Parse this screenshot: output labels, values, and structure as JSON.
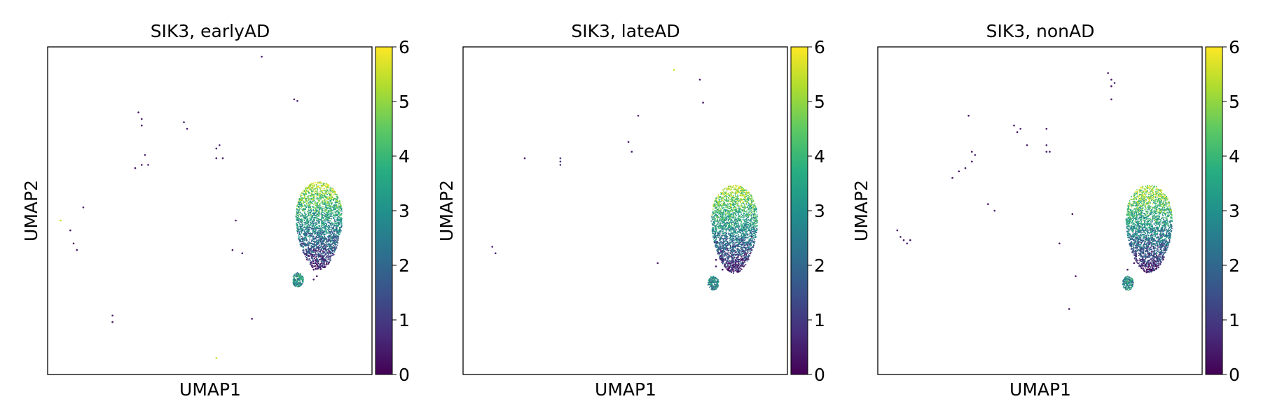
{
  "chart_data": [
    {
      "type": "scatter",
      "title": "SIK3, earlyAD",
      "xlabel": "UMAP1",
      "ylabel": "UMAP2",
      "color_scale": "viridis",
      "colorbar_ticks": [
        "0",
        "1",
        "2",
        "3",
        "4",
        "5",
        "6"
      ],
      "clim": [
        0,
        6
      ],
      "grid": false,
      "points": [
        {
          "x": 0.66,
          "y": 0.97,
          "v": 0.5
        },
        {
          "x": 0.76,
          "y": 0.84,
          "v": 0.5
        },
        {
          "x": 0.77,
          "y": 0.835,
          "v": 0.6
        },
        {
          "x": 0.28,
          "y": 0.8,
          "v": 0.4
        },
        {
          "x": 0.29,
          "y": 0.78,
          "v": 0.5
        },
        {
          "x": 0.29,
          "y": 0.76,
          "v": 0.3
        },
        {
          "x": 0.42,
          "y": 0.77,
          "v": 0.5
        },
        {
          "x": 0.43,
          "y": 0.75,
          "v": 0.4
        },
        {
          "x": 0.52,
          "y": 0.69,
          "v": 0.5
        },
        {
          "x": 0.53,
          "y": 0.7,
          "v": 0.6
        },
        {
          "x": 0.54,
          "y": 0.66,
          "v": 0.4
        },
        {
          "x": 0.52,
          "y": 0.66,
          "v": 0.5
        },
        {
          "x": 0.3,
          "y": 0.67,
          "v": 0.4
        },
        {
          "x": 0.31,
          "y": 0.64,
          "v": 0.5
        },
        {
          "x": 0.29,
          "y": 0.64,
          "v": 0.3
        },
        {
          "x": 0.27,
          "y": 0.63,
          "v": 0.4
        },
        {
          "x": 0.11,
          "y": 0.51,
          "v": 0.5
        },
        {
          "x": 0.04,
          "y": 0.47,
          "v": 5.5
        },
        {
          "x": 0.07,
          "y": 0.44,
          "v": 0.4
        },
        {
          "x": 0.08,
          "y": 0.4,
          "v": 0.3
        },
        {
          "x": 0.09,
          "y": 0.38,
          "v": 0.4
        },
        {
          "x": 0.58,
          "y": 0.47,
          "v": 0.5
        },
        {
          "x": 0.57,
          "y": 0.38,
          "v": 0.3
        },
        {
          "x": 0.6,
          "y": 0.37,
          "v": 0.4
        },
        {
          "x": 0.82,
          "y": 0.38,
          "v": 0.4
        },
        {
          "x": 0.82,
          "y": 0.32,
          "v": 0.5
        },
        {
          "x": 0.83,
          "y": 0.3,
          "v": 0.3
        },
        {
          "x": 0.82,
          "y": 0.29,
          "v": 0.4
        },
        {
          "x": 0.2,
          "y": 0.18,
          "v": 0.5
        },
        {
          "x": 0.2,
          "y": 0.16,
          "v": 0.4
        },
        {
          "x": 0.63,
          "y": 0.17,
          "v": 0.3
        },
        {
          "x": 0.52,
          "y": 0.05,
          "v": 5.5
        }
      ]
    },
    {
      "type": "scatter",
      "title": "SIK3, lateAD",
      "xlabel": "UMAP1",
      "ylabel": "UMAP2",
      "color_scale": "viridis",
      "colorbar_ticks": [
        "0",
        "1",
        "2",
        "3",
        "4",
        "5",
        "6"
      ],
      "clim": [
        0,
        6
      ],
      "grid": false,
      "points": [
        {
          "x": 0.65,
          "y": 0.93,
          "v": 5.5
        },
        {
          "x": 0.73,
          "y": 0.9,
          "v": 0.4
        },
        {
          "x": 0.74,
          "y": 0.83,
          "v": 0.5
        },
        {
          "x": 0.54,
          "y": 0.79,
          "v": 0.4
        },
        {
          "x": 0.51,
          "y": 0.71,
          "v": 0.5
        },
        {
          "x": 0.52,
          "y": 0.68,
          "v": 0.4
        },
        {
          "x": 0.19,
          "y": 0.66,
          "v": 0.5
        },
        {
          "x": 0.3,
          "y": 0.66,
          "v": 1.2
        },
        {
          "x": 0.3,
          "y": 0.65,
          "v": 0.8
        },
        {
          "x": 0.3,
          "y": 0.64,
          "v": 1.0
        },
        {
          "x": 0.09,
          "y": 0.39,
          "v": 0.4
        },
        {
          "x": 0.1,
          "y": 0.37,
          "v": 0.5
        },
        {
          "x": 0.89,
          "y": 0.42,
          "v": 0.4
        },
        {
          "x": 0.6,
          "y": 0.34,
          "v": 0.5
        },
        {
          "x": 0.78,
          "y": 0.35,
          "v": 0.4
        },
        {
          "x": 0.8,
          "y": 0.32,
          "v": 0.5
        },
        {
          "x": 0.82,
          "y": 0.34,
          "v": 0.3
        },
        {
          "x": 0.83,
          "y": 0.32,
          "v": 0.4
        },
        {
          "x": 0.84,
          "y": 0.34,
          "v": 0.5
        },
        {
          "x": 0.78,
          "y": 0.33,
          "v": 0.4
        }
      ]
    },
    {
      "type": "scatter",
      "title": "SIK3, nonAD",
      "xlabel": "UMAP1",
      "ylabel": "UMAP2",
      "color_scale": "viridis",
      "colorbar_ticks": [
        "0",
        "1",
        "2",
        "3",
        "4",
        "5",
        "6"
      ],
      "clim": [
        0,
        6
      ],
      "grid": false,
      "points": [
        {
          "x": 0.71,
          "y": 0.92,
          "v": 0.3
        },
        {
          "x": 0.72,
          "y": 0.9,
          "v": 0.4
        },
        {
          "x": 0.72,
          "y": 0.88,
          "v": 0.3
        },
        {
          "x": 0.73,
          "y": 0.89,
          "v": 0.5
        },
        {
          "x": 0.72,
          "y": 0.84,
          "v": 0.4
        },
        {
          "x": 0.28,
          "y": 0.79,
          "v": 0.3
        },
        {
          "x": 0.42,
          "y": 0.76,
          "v": 0.4
        },
        {
          "x": 0.43,
          "y": 0.74,
          "v": 0.3
        },
        {
          "x": 0.44,
          "y": 0.75,
          "v": 0.5
        },
        {
          "x": 0.52,
          "y": 0.75,
          "v": 0.3
        },
        {
          "x": 0.52,
          "y": 0.7,
          "v": 0.4
        },
        {
          "x": 0.53,
          "y": 0.68,
          "v": 0.5
        },
        {
          "x": 0.52,
          "y": 0.68,
          "v": 0.4
        },
        {
          "x": 0.46,
          "y": 0.7,
          "v": 0.3
        },
        {
          "x": 0.29,
          "y": 0.68,
          "v": 0.3
        },
        {
          "x": 0.3,
          "y": 0.67,
          "v": 0.4
        },
        {
          "x": 0.29,
          "y": 0.65,
          "v": 0.3
        },
        {
          "x": 0.27,
          "y": 0.63,
          "v": 0.4
        },
        {
          "x": 0.25,
          "y": 0.62,
          "v": 0.3
        },
        {
          "x": 0.23,
          "y": 0.6,
          "v": 0.4
        },
        {
          "x": 0.34,
          "y": 0.52,
          "v": 0.3
        },
        {
          "x": 0.36,
          "y": 0.5,
          "v": 0.4
        },
        {
          "x": 0.06,
          "y": 0.44,
          "v": 0.3
        },
        {
          "x": 0.07,
          "y": 0.42,
          "v": 0.4
        },
        {
          "x": 0.08,
          "y": 0.41,
          "v": 0.3
        },
        {
          "x": 0.09,
          "y": 0.4,
          "v": 0.4
        },
        {
          "x": 0.1,
          "y": 0.41,
          "v": 0.3
        },
        {
          "x": 0.6,
          "y": 0.49,
          "v": 0.3
        },
        {
          "x": 0.56,
          "y": 0.4,
          "v": 0.3
        },
        {
          "x": 0.79,
          "y": 0.34,
          "v": 0.3
        },
        {
          "x": 0.81,
          "y": 0.33,
          "v": 0.4
        },
        {
          "x": 0.82,
          "y": 0.34,
          "v": 0.3
        },
        {
          "x": 0.83,
          "y": 0.32,
          "v": 0.4
        },
        {
          "x": 0.77,
          "y": 0.32,
          "v": 0.3
        },
        {
          "x": 0.61,
          "y": 0.3,
          "v": 0.3
        },
        {
          "x": 0.59,
          "y": 0.2,
          "v": 0.3
        }
      ]
    }
  ]
}
